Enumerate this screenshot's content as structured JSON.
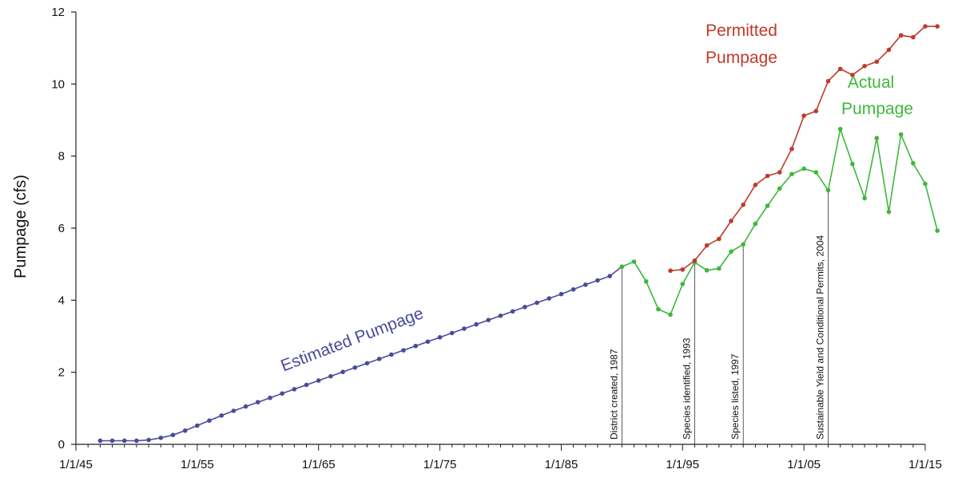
{
  "chart_data": {
    "type": "line",
    "title": "",
    "xlabel": "",
    "ylabel": "Pumpage (cfs)",
    "xlim": [
      "1945-01-01",
      "2015-01-01"
    ],
    "ylim": [
      0,
      12
    ],
    "x_ticks": [
      "1/1/45",
      "1/1/55",
      "1/1/65",
      "1/1/75",
      "1/1/85",
      "1/1/95",
      "1/1/05",
      "1/1/15"
    ],
    "y_ticks": [
      "0",
      "2",
      "4",
      "6",
      "8",
      "10",
      "12"
    ],
    "grid": false,
    "legend": "none",
    "series": [
      {
        "name": "Estimated Pumpage",
        "label_lines": [
          "Estimated Pumpage"
        ],
        "color": "#4a4a9c",
        "points": [
          [
            "1947-01-01",
            0.1
          ],
          [
            "1948-01-01",
            0.1
          ],
          [
            "1949-01-01",
            0.1
          ],
          [
            "1950-01-01",
            0.1
          ],
          [
            "1951-01-01",
            0.12
          ],
          [
            "1952-01-01",
            0.18
          ],
          [
            "1953-01-01",
            0.26
          ],
          [
            "1954-01-01",
            0.38
          ],
          [
            "1955-01-01",
            0.52
          ],
          [
            "1956-01-01",
            0.66
          ],
          [
            "1957-01-01",
            0.8
          ],
          [
            "1958-01-01",
            0.93
          ],
          [
            "1959-01-01",
            1.05
          ],
          [
            "1960-01-01",
            1.17
          ],
          [
            "1961-01-01",
            1.29
          ],
          [
            "1962-01-01",
            1.41
          ],
          [
            "1963-01-01",
            1.53
          ],
          [
            "1964-01-01",
            1.65
          ],
          [
            "1965-01-01",
            1.77
          ],
          [
            "1966-01-01",
            1.89
          ],
          [
            "1967-01-01",
            2.01
          ],
          [
            "1968-01-01",
            2.13
          ],
          [
            "1969-01-01",
            2.25
          ],
          [
            "1970-01-01",
            2.37
          ],
          [
            "1971-01-01",
            2.49
          ],
          [
            "1972-01-01",
            2.61
          ],
          [
            "1973-01-01",
            2.73
          ],
          [
            "1974-01-01",
            2.85
          ],
          [
            "1975-01-01",
            2.97
          ],
          [
            "1976-01-01",
            3.09
          ],
          [
            "1977-01-01",
            3.21
          ],
          [
            "1978-01-01",
            3.33
          ],
          [
            "1979-01-01",
            3.45
          ],
          [
            "1980-01-01",
            3.57
          ],
          [
            "1981-01-01",
            3.69
          ],
          [
            "1982-01-01",
            3.81
          ],
          [
            "1983-01-01",
            3.93
          ],
          [
            "1984-01-01",
            4.05
          ],
          [
            "1985-01-01",
            4.17
          ],
          [
            "1986-01-01",
            4.3
          ],
          [
            "1987-01-01",
            4.43
          ],
          [
            "1988-01-01",
            4.55
          ],
          [
            "1989-01-01",
            4.67
          ],
          [
            "1990-01-01",
            4.93
          ]
        ]
      },
      {
        "name": "Actual Pumpage",
        "label_lines": [
          "Actual",
          "Pumpage"
        ],
        "color": "#3db83a",
        "points": [
          [
            "1990-01-01",
            4.93
          ],
          [
            "1991-01-01",
            5.07
          ],
          [
            "1992-01-01",
            4.52
          ],
          [
            "1993-01-01",
            3.75
          ],
          [
            "1994-01-01",
            3.6
          ],
          [
            "1995-01-01",
            4.45
          ],
          [
            "1996-01-01",
            5.05
          ],
          [
            "1997-01-01",
            4.83
          ],
          [
            "1998-01-01",
            4.88
          ],
          [
            "1999-01-01",
            5.35
          ],
          [
            "2000-01-01",
            5.55
          ],
          [
            "2001-01-01",
            6.12
          ],
          [
            "2002-01-01",
            6.62
          ],
          [
            "2003-01-01",
            7.1
          ],
          [
            "2004-01-01",
            7.5
          ],
          [
            "2005-01-01",
            7.65
          ],
          [
            "2006-01-01",
            7.55
          ],
          [
            "2007-01-01",
            7.05
          ],
          [
            "2008-01-01",
            8.75
          ],
          [
            "2009-01-01",
            7.78
          ],
          [
            "2010-01-01",
            6.83
          ],
          [
            "2011-01-01",
            8.5
          ],
          [
            "2012-01-01",
            6.45
          ],
          [
            "2013-01-01",
            8.6
          ],
          [
            "2014-01-01",
            7.8
          ],
          [
            "2015-01-01",
            7.23
          ],
          [
            "2016-01-01",
            5.93
          ]
        ]
      },
      {
        "name": "Permitted Pumpage",
        "label_lines": [
          "Permitted",
          "Pumpage"
        ],
        "color": "#c0392b",
        "points": [
          [
            "1994-01-01",
            4.82
          ],
          [
            "1995-01-01",
            4.85
          ],
          [
            "1996-01-01",
            5.1
          ],
          [
            "1997-01-01",
            5.52
          ],
          [
            "1998-01-01",
            5.7
          ],
          [
            "1999-01-01",
            6.2
          ],
          [
            "2000-01-01",
            6.65
          ],
          [
            "2001-01-01",
            7.2
          ],
          [
            "2002-01-01",
            7.45
          ],
          [
            "2003-01-01",
            7.55
          ],
          [
            "2004-01-01",
            8.2
          ],
          [
            "2005-01-01",
            9.12
          ],
          [
            "2006-01-01",
            9.25
          ],
          [
            "2007-01-01",
            10.08
          ],
          [
            "2008-01-01",
            10.42
          ],
          [
            "2009-01-01",
            10.25
          ],
          [
            "2010-01-01",
            10.5
          ],
          [
            "2011-01-01",
            10.62
          ],
          [
            "2012-01-01",
            10.95
          ],
          [
            "2013-01-01",
            11.35
          ],
          [
            "2014-01-01",
            11.3
          ],
          [
            "2015-01-01",
            11.6
          ],
          [
            "2016-01-01",
            11.6
          ]
        ]
      }
    ],
    "annotations": [
      {
        "text": "District created, 1987",
        "x": "1990-01-01",
        "y": 4.93
      },
      {
        "text": "Species identified, 1993",
        "x": "1996-01-01",
        "y": 5.05
      },
      {
        "text": "Species listed, 1997",
        "x": "2000-01-01",
        "y": 5.55
      },
      {
        "text": "Sustainable Yield and Conditional Permits, 2004",
        "x": "2007-01-01",
        "y": 7.05
      }
    ]
  }
}
